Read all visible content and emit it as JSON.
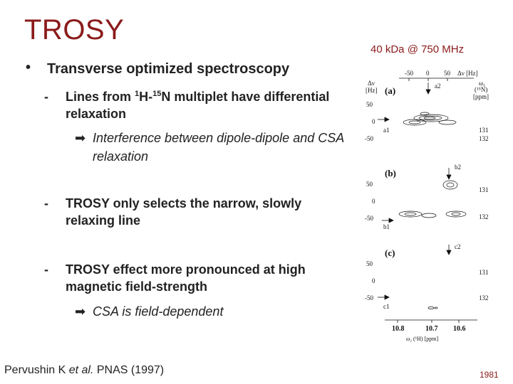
{
  "slide": {
    "title": "TROSY",
    "subtitle": "40 kDa @ 750 MHz",
    "bullet1": "Transverse optimized spectroscopy",
    "sub1_pre": "Lines from ",
    "sub1_sup1": "1",
    "sub1_mid": "H-",
    "sub1_sup2": "15",
    "sub1_post": "N multiplet have differential relaxation",
    "arrow1": "Interference between dipole-dipole and CSA relaxation",
    "sub2": "TROSY only selects the narrow, slowly relaxing line",
    "sub3": "TROSY effect more pronounced at high magnetic field-strength",
    "arrow2": "CSA is field-dependent",
    "citation_author": "Pervushin K ",
    "citation_etal": "et al.",
    "citation_journal": " PNAS (1997)",
    "page_number": "1981"
  },
  "figure": {
    "top_axis_ticks": [
      "-50",
      "0",
      "50"
    ],
    "top_axis_label": "Δν [Hz]",
    "omega1_label": "ω₁",
    "n15_label": "(¹⁵N)",
    "ppm_label": "[ppm]",
    "left_axis_label_1": "Δν",
    "left_axis_label_2": "[Hz]",
    "panel_a": "(a)",
    "panel_b": "(b)",
    "panel_c": "(c)",
    "tick_50": "50",
    "tick_0": "0",
    "tick_m50": "-50",
    "ppm_131": "131",
    "ppm_132": "132",
    "peak_a1": "a1",
    "peak_a2": "a2",
    "peak_b1": "b1",
    "peak_b2": "b2",
    "peak_c1": "c1",
    "peak_c2": "c2",
    "x_tick_108": "10.8",
    "x_tick_107": "10.7",
    "x_tick_106": "10.6",
    "x_axis_label": "ω₂ (¹H) [ppm]"
  }
}
